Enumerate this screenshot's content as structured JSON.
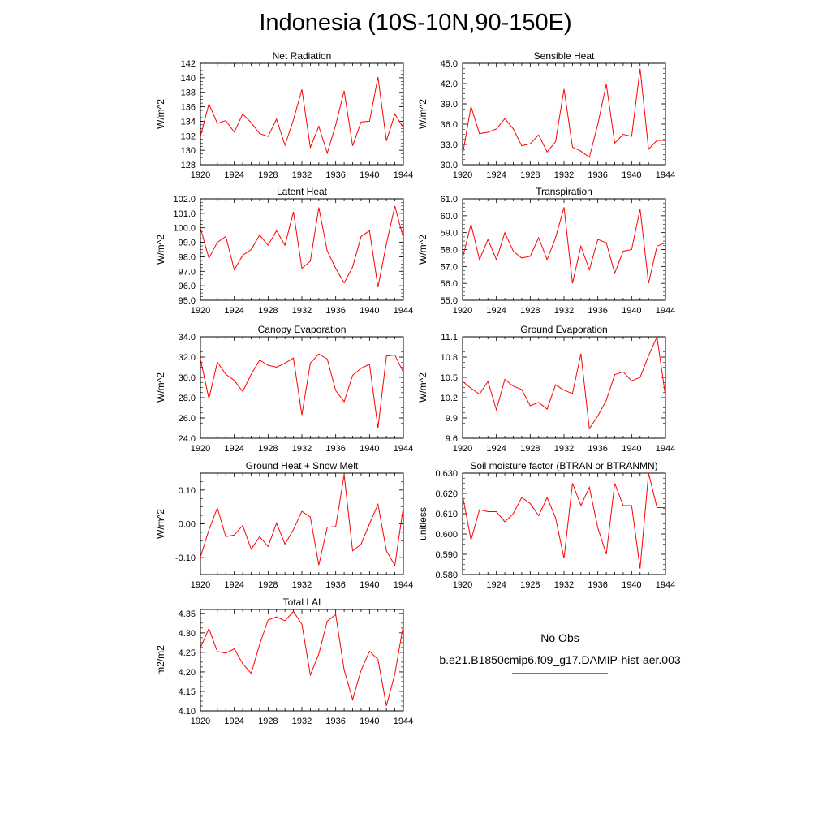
{
  "title": "Indonesia (10S-10N,90-150E)",
  "legend": {
    "entries": [
      {
        "label": "No Obs",
        "style": "dashed",
        "color": "#3b3bb3"
      },
      {
        "label": "b.e21.B1850cmip6.f09_g17.DAMIP-hist-aer.003",
        "style": "solid",
        "color": "#e8474c"
      }
    ]
  },
  "series_color": "#ff0000",
  "chart_data": [
    {
      "type": "line",
      "title": "Net Radiation",
      "ylabel": "W/m^2",
      "xlabel": "",
      "xlim": [
        1920,
        1944
      ],
      "ylim": [
        128,
        142
      ],
      "yticks": [
        128,
        130,
        132,
        134,
        136,
        138,
        140,
        142
      ],
      "ytick_labels": [
        "128",
        "130",
        "132",
        "134",
        "136",
        "138",
        "140",
        "142"
      ],
      "xticks": [
        1920,
        1924,
        1928,
        1932,
        1936,
        1940,
        1944
      ],
      "x": [
        1920,
        1921,
        1922,
        1923,
        1924,
        1925,
        1926,
        1927,
        1928,
        1929,
        1930,
        1931,
        1932,
        1933,
        1934,
        1935,
        1936,
        1937,
        1938,
        1939,
        1940,
        1941,
        1942,
        1943,
        1944
      ],
      "series": [
        {
          "name": "b.e21.B1850cmip6.f09_g17.DAMIP-hist-aer.003",
          "values": [
            131.9,
            136.4,
            133.7,
            134.1,
            132.5,
            135.0,
            133.8,
            132.3,
            131.9,
            134.3,
            130.7,
            134.2,
            138.4,
            130.4,
            133.3,
            129.6,
            133.5,
            138.2,
            130.6,
            133.9,
            134.0,
            140.1,
            131.3,
            135.0,
            133.1
          ]
        }
      ]
    },
    {
      "type": "line",
      "title": "Sensible Heat",
      "ylabel": "W/m^2",
      "xlabel": "",
      "xlim": [
        1920,
        1944
      ],
      "ylim": [
        30,
        45
      ],
      "yticks": [
        30,
        33,
        36,
        39,
        42,
        45
      ],
      "ytick_labels": [
        "30.0",
        "33.0",
        "36.0",
        "39.0",
        "42.0",
        "45.0"
      ],
      "xticks": [
        1920,
        1924,
        1928,
        1932,
        1936,
        1940,
        1944
      ],
      "x": [
        1920,
        1921,
        1922,
        1923,
        1924,
        1925,
        1926,
        1927,
        1928,
        1929,
        1930,
        1931,
        1932,
        1933,
        1934,
        1935,
        1936,
        1937,
        1938,
        1939,
        1940,
        1941,
        1942,
        1943,
        1944
      ],
      "series": [
        {
          "name": "b.e21.B1850cmip6.f09_g17.DAMIP-hist-aer.003",
          "values": [
            31.5,
            38.6,
            34.6,
            34.8,
            35.3,
            36.8,
            35.3,
            32.8,
            33.1,
            34.4,
            31.9,
            33.4,
            41.2,
            32.6,
            32.0,
            31.1,
            36.0,
            41.9,
            33.2,
            34.5,
            34.2,
            44.2,
            32.3,
            33.6,
            33.6
          ]
        }
      ]
    },
    {
      "type": "line",
      "title": "Latent Heat",
      "ylabel": "W/m^2",
      "xlabel": "",
      "xlim": [
        1920,
        1944
      ],
      "ylim": [
        95,
        102
      ],
      "yticks": [
        95,
        96,
        97,
        98,
        99,
        100,
        101,
        102
      ],
      "ytick_labels": [
        "95.0",
        "96.0",
        "97.0",
        "98.0",
        "99.0",
        "100.0",
        "101.0",
        "102.0"
      ],
      "xticks": [
        1920,
        1924,
        1928,
        1932,
        1936,
        1940,
        1944
      ],
      "x": [
        1920,
        1921,
        1922,
        1923,
        1924,
        1925,
        1926,
        1927,
        1928,
        1929,
        1930,
        1931,
        1932,
        1933,
        1934,
        1935,
        1936,
        1937,
        1938,
        1939,
        1940,
        1941,
        1942,
        1943,
        1944
      ],
      "series": [
        {
          "name": "b.e21.B1850cmip6.f09_g17.DAMIP-hist-aer.003",
          "values": [
            100.0,
            97.9,
            99.0,
            99.4,
            97.1,
            98.1,
            98.5,
            99.5,
            98.8,
            99.8,
            98.8,
            101.1,
            97.2,
            97.7,
            101.4,
            98.4,
            97.2,
            96.2,
            97.3,
            99.4,
            99.8,
            95.9,
            98.9,
            101.5,
            99.3
          ]
        }
      ]
    },
    {
      "type": "line",
      "title": "Transpiration",
      "ylabel": "W/m^2",
      "xlabel": "",
      "xlim": [
        1920,
        1944
      ],
      "ylim": [
        55,
        61
      ],
      "yticks": [
        55,
        56,
        57,
        58,
        59,
        60,
        61
      ],
      "ytick_labels": [
        "55.0",
        "56.0",
        "57.0",
        "58.0",
        "59.0",
        "60.0",
        "61.0"
      ],
      "xticks": [
        1920,
        1924,
        1928,
        1932,
        1936,
        1940,
        1944
      ],
      "x": [
        1920,
        1921,
        1922,
        1923,
        1924,
        1925,
        1926,
        1927,
        1928,
        1929,
        1930,
        1931,
        1932,
        1933,
        1934,
        1935,
        1936,
        1937,
        1938,
        1939,
        1940,
        1941,
        1942,
        1943,
        1944
      ],
      "series": [
        {
          "name": "b.e21.B1850cmip6.f09_g17.DAMIP-hist-aer.003",
          "values": [
            57.5,
            59.5,
            57.4,
            58.6,
            57.4,
            59.0,
            57.9,
            57.5,
            57.6,
            58.7,
            57.4,
            58.7,
            60.5,
            56.0,
            58.2,
            56.8,
            58.6,
            58.4,
            56.6,
            57.9,
            58.0,
            60.4,
            56.0,
            58.2,
            58.4
          ]
        }
      ]
    },
    {
      "type": "line",
      "title": "Canopy Evaporation",
      "ylabel": "W/m^2",
      "xlabel": "",
      "xlim": [
        1920,
        1944
      ],
      "ylim": [
        24,
        34
      ],
      "yticks": [
        24,
        26,
        28,
        30,
        32,
        34
      ],
      "ytick_labels": [
        "24.0",
        "26.0",
        "28.0",
        "30.0",
        "32.0",
        "34.0"
      ],
      "xticks": [
        1920,
        1924,
        1928,
        1932,
        1936,
        1940,
        1944
      ],
      "x": [
        1920,
        1921,
        1922,
        1923,
        1924,
        1925,
        1926,
        1927,
        1928,
        1929,
        1930,
        1931,
        1932,
        1933,
        1934,
        1935,
        1936,
        1937,
        1938,
        1939,
        1940,
        1941,
        1942,
        1943,
        1944
      ],
      "series": [
        {
          "name": "b.e21.B1850cmip6.f09_g17.DAMIP-hist-aer.003",
          "values": [
            31.8,
            27.9,
            31.5,
            30.3,
            29.7,
            28.6,
            30.3,
            31.7,
            31.2,
            31.0,
            31.4,
            31.9,
            26.3,
            31.4,
            32.3,
            31.8,
            28.7,
            27.6,
            30.2,
            30.9,
            31.3,
            25.0,
            32.1,
            32.2,
            30.5
          ]
        }
      ]
    },
    {
      "type": "line",
      "title": "Ground Evaporation",
      "ylabel": "W/m^2",
      "xlabel": "",
      "xlim": [
        1920,
        1944
      ],
      "ylim": [
        9.6,
        11.1
      ],
      "yticks": [
        9.6,
        9.9,
        10.2,
        10.5,
        10.8,
        11.1
      ],
      "ytick_labels": [
        "9.6",
        "9.9",
        "10.2",
        "10.5",
        "10.8",
        "11.1"
      ],
      "xticks": [
        1920,
        1924,
        1928,
        1932,
        1936,
        1940,
        1944
      ],
      "x": [
        1920,
        1921,
        1922,
        1923,
        1924,
        1925,
        1926,
        1927,
        1928,
        1929,
        1930,
        1931,
        1932,
        1933,
        1934,
        1935,
        1936,
        1937,
        1938,
        1939,
        1940,
        1941,
        1942,
        1943,
        1944
      ],
      "series": [
        {
          "name": "b.e21.B1850cmip6.f09_g17.DAMIP-hist-aer.003",
          "values": [
            10.44,
            10.34,
            10.25,
            10.44,
            10.02,
            10.47,
            10.37,
            10.32,
            10.08,
            10.13,
            10.03,
            10.39,
            10.31,
            10.26,
            10.85,
            9.74,
            9.93,
            10.16,
            10.54,
            10.58,
            10.45,
            10.5,
            10.82,
            11.1,
            10.22
          ]
        }
      ]
    },
    {
      "type": "line",
      "title": "Ground Heat + Snow Melt",
      "ylabel": "W/m^2",
      "xlabel": "",
      "xlim": [
        1920,
        1944
      ],
      "ylim": [
        -0.15,
        0.15
      ],
      "yticks": [
        -0.1,
        0.0,
        0.1
      ],
      "ytick_labels": [
        "-0.10",
        "0.00",
        "0.10"
      ],
      "xticks": [
        1920,
        1924,
        1928,
        1932,
        1936,
        1940,
        1944
      ],
      "x": [
        1920,
        1921,
        1922,
        1923,
        1924,
        1925,
        1926,
        1927,
        1928,
        1929,
        1930,
        1931,
        1932,
        1933,
        1934,
        1935,
        1936,
        1937,
        1938,
        1939,
        1940,
        1941,
        1942,
        1943,
        1944
      ],
      "series": [
        {
          "name": "b.e21.B1850cmip6.f09_g17.DAMIP-hist-aer.003",
          "values": [
            -0.098,
            -0.018,
            0.047,
            -0.038,
            -0.033,
            -0.005,
            -0.075,
            -0.038,
            -0.067,
            0.002,
            -0.06,
            -0.017,
            0.037,
            0.02,
            -0.122,
            -0.01,
            -0.008,
            0.145,
            -0.08,
            -0.06,
            0.0,
            0.058,
            -0.08,
            -0.123,
            0.05
          ]
        }
      ]
    },
    {
      "type": "line",
      "title": "Soil moisture factor (BTRAN or BTRANMN)",
      "ylabel": "unitless",
      "xlabel": "",
      "xlim": [
        1920,
        1944
      ],
      "ylim": [
        0.58,
        0.63
      ],
      "yticks": [
        0.58,
        0.59,
        0.6,
        0.61,
        0.62,
        0.63
      ],
      "ytick_labels": [
        "0.580",
        "0.590",
        "0.600",
        "0.610",
        "0.620",
        "0.630"
      ],
      "xticks": [
        1920,
        1924,
        1928,
        1932,
        1936,
        1940,
        1944
      ],
      "x": [
        1920,
        1921,
        1922,
        1923,
        1924,
        1925,
        1926,
        1927,
        1928,
        1929,
        1930,
        1931,
        1932,
        1933,
        1934,
        1935,
        1936,
        1937,
        1938,
        1939,
        1940,
        1941,
        1942,
        1943,
        1944
      ],
      "series": [
        {
          "name": "b.e21.B1850cmip6.f09_g17.DAMIP-hist-aer.003",
          "values": [
            0.619,
            0.597,
            0.612,
            0.611,
            0.611,
            0.606,
            0.61,
            0.618,
            0.615,
            0.609,
            0.618,
            0.608,
            0.588,
            0.625,
            0.614,
            0.623,
            0.603,
            0.59,
            0.625,
            0.614,
            0.614,
            0.583,
            0.63,
            0.613,
            0.613
          ]
        }
      ]
    },
    {
      "type": "line",
      "title": "Total LAI",
      "ylabel": "m2/m2",
      "xlabel": "",
      "xlim": [
        1920,
        1944
      ],
      "ylim": [
        4.1,
        4.36
      ],
      "yticks": [
        4.1,
        4.15,
        4.2,
        4.25,
        4.3,
        4.35
      ],
      "ytick_labels": [
        "4.10",
        "4.15",
        "4.20",
        "4.25",
        "4.30",
        "4.35"
      ],
      "xticks": [
        1920,
        1924,
        1928,
        1932,
        1936,
        1940,
        1944
      ],
      "x": [
        1920,
        1921,
        1922,
        1923,
        1924,
        1925,
        1926,
        1927,
        1928,
        1929,
        1930,
        1931,
        1932,
        1933,
        1934,
        1935,
        1936,
        1937,
        1938,
        1939,
        1940,
        1941,
        1942,
        1943,
        1944
      ],
      "series": [
        {
          "name": "b.e21.B1850cmip6.f09_g17.DAMIP-hist-aer.003",
          "values": [
            4.262,
            4.311,
            4.252,
            4.248,
            4.259,
            4.221,
            4.196,
            4.27,
            4.333,
            4.341,
            4.331,
            4.355,
            4.322,
            4.192,
            4.246,
            4.33,
            4.347,
            4.205,
            4.129,
            4.204,
            4.253,
            4.232,
            4.113,
            4.195,
            4.32
          ]
        }
      ]
    }
  ]
}
